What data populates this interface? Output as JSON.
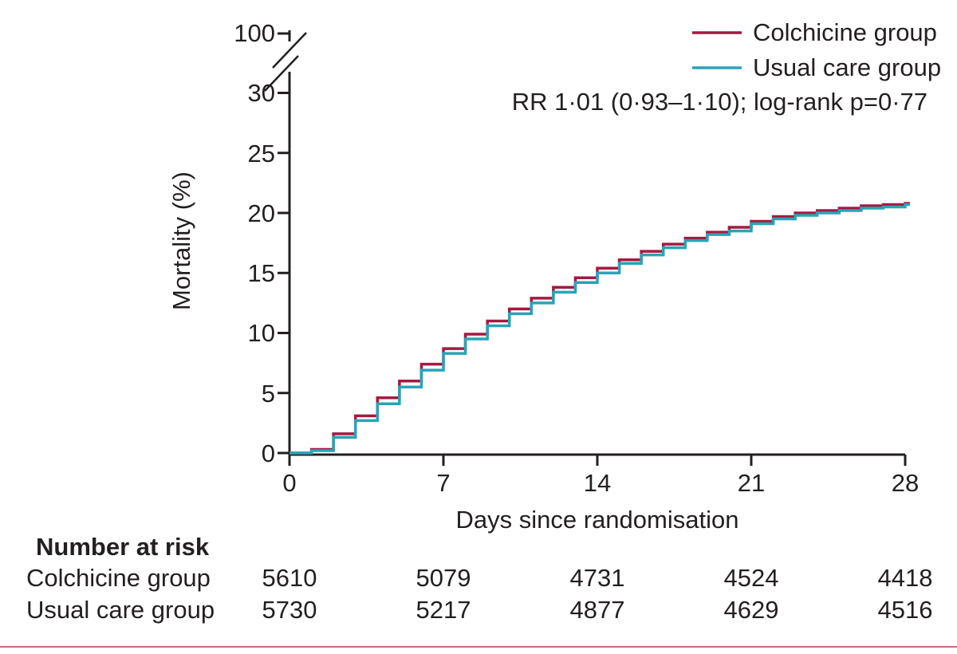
{
  "figure": {
    "y_axis": {
      "label": "Mortality (%)",
      "ticks": [
        "100",
        "30",
        "25",
        "20",
        "15",
        "10",
        "5",
        "0"
      ]
    },
    "x_axis": {
      "label": "Days since randomisation",
      "ticks": [
        "0",
        "7",
        "14",
        "21",
        "28"
      ]
    },
    "legend": [
      {
        "label": "Colchicine group",
        "color": "#A31A40"
      },
      {
        "label": "Usual care group",
        "color": "#2AA3B7"
      }
    ],
    "annotation": "RR 1·01 (0·93–1·10); log-rank p=0·77",
    "risk_table": {
      "title": "Number at risk",
      "rows": [
        {
          "label": "Colchicine group",
          "values": [
            "5610",
            "5079",
            "4731",
            "4524",
            "4418"
          ]
        },
        {
          "label": "Usual care group",
          "values": [
            "5730",
            "5217",
            "4877",
            "4629",
            "4516"
          ]
        }
      ]
    },
    "colors": {
      "axis": "#231F20",
      "bottom_rule": "#C76D7E"
    }
  },
  "chart_data": {
    "type": "line",
    "subtype": "kaplan-meier-step",
    "title": "",
    "xlabel": "Days since randomisation",
    "ylabel": "Mortality (%)",
    "x_tick_values": [
      0,
      7,
      14,
      21,
      28
    ],
    "y_tick_values": [
      0,
      5,
      10,
      15,
      20,
      25,
      30,
      100
    ],
    "ylim_main": [
      0,
      30
    ],
    "axis_break_between": [
      30,
      100
    ],
    "annotation": "RR 1·01 (0·93–1·10); log-rank p=0·77",
    "legend_position": "top-right",
    "grid": false,
    "days": [
      0,
      1,
      2,
      3,
      4,
      5,
      6,
      7,
      8,
      9,
      10,
      11,
      12,
      13,
      14,
      15,
      16,
      17,
      18,
      19,
      20,
      21,
      22,
      23,
      24,
      25,
      26,
      27,
      28
    ],
    "series": [
      {
        "name": "Colchicine group",
        "color": "#A31A40",
        "values": [
          0,
          0.3,
          1.6,
          3.1,
          4.6,
          6.0,
          7.4,
          8.7,
          9.9,
          11.0,
          12.0,
          12.9,
          13.8,
          14.6,
          15.4,
          16.1,
          16.8,
          17.4,
          17.9,
          18.4,
          18.8,
          19.3,
          19.7,
          20.0,
          20.2,
          20.4,
          20.6,
          20.7,
          20.8
        ]
      },
      {
        "name": "Usual care group",
        "color": "#2AA3B7",
        "values": [
          0,
          0.2,
          1.3,
          2.7,
          4.1,
          5.5,
          6.9,
          8.3,
          9.5,
          10.6,
          11.6,
          12.5,
          13.4,
          14.2,
          15.0,
          15.8,
          16.5,
          17.1,
          17.7,
          18.2,
          18.5,
          19.1,
          19.5,
          19.8,
          20.0,
          20.2,
          20.4,
          20.5,
          20.7
        ]
      }
    ],
    "number_at_risk": {
      "title": "Number at risk",
      "timepoints": [
        0,
        7,
        14,
        21,
        28
      ],
      "rows": [
        {
          "name": "Colchicine group",
          "counts": [
            5610,
            5079,
            4731,
            4524,
            4418
          ]
        },
        {
          "name": "Usual care group",
          "counts": [
            5730,
            5217,
            4877,
            4629,
            4516
          ]
        }
      ]
    }
  }
}
